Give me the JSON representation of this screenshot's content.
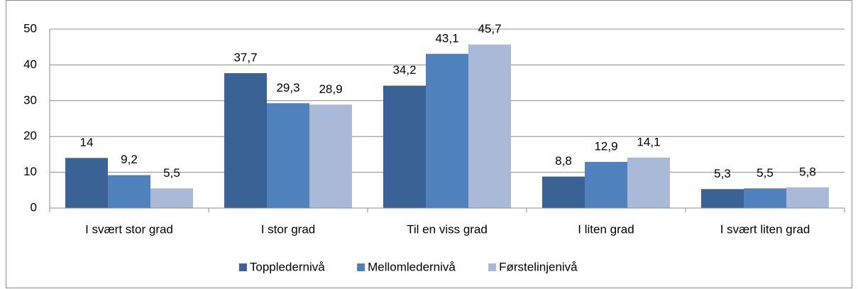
{
  "chart_data": {
    "type": "bar",
    "categories": [
      "I svært stor grad",
      "I stor grad",
      "Til en viss grad",
      "I liten grad",
      "I svært liten grad"
    ],
    "series": [
      {
        "name": "Toppledernivå",
        "color": "#3b6295",
        "values": [
          14,
          37.7,
          34.2,
          8.8,
          5.3
        ],
        "value_labels": [
          "14",
          "37,7",
          "34,2",
          "8,8",
          "5,3"
        ]
      },
      {
        "name": "Mellomledernivå",
        "color": "#4f81bd",
        "values": [
          9.2,
          29.3,
          43.1,
          12.9,
          5.5
        ],
        "value_labels": [
          "9,2",
          "29,3",
          "43,1",
          "12,9",
          "5,5"
        ]
      },
      {
        "name": "Førstelinjenivå",
        "color": "#a9b9d8",
        "values": [
          5.5,
          28.9,
          45.7,
          14.1,
          5.8
        ],
        "value_labels": [
          "5,5",
          "28,9",
          "45,7",
          "14,1",
          "5,8"
        ]
      }
    ],
    "ylim": [
      0,
      50
    ],
    "yticks": [
      0,
      10,
      20,
      30,
      40,
      50
    ],
    "grid": true,
    "legend": "bottom"
  }
}
